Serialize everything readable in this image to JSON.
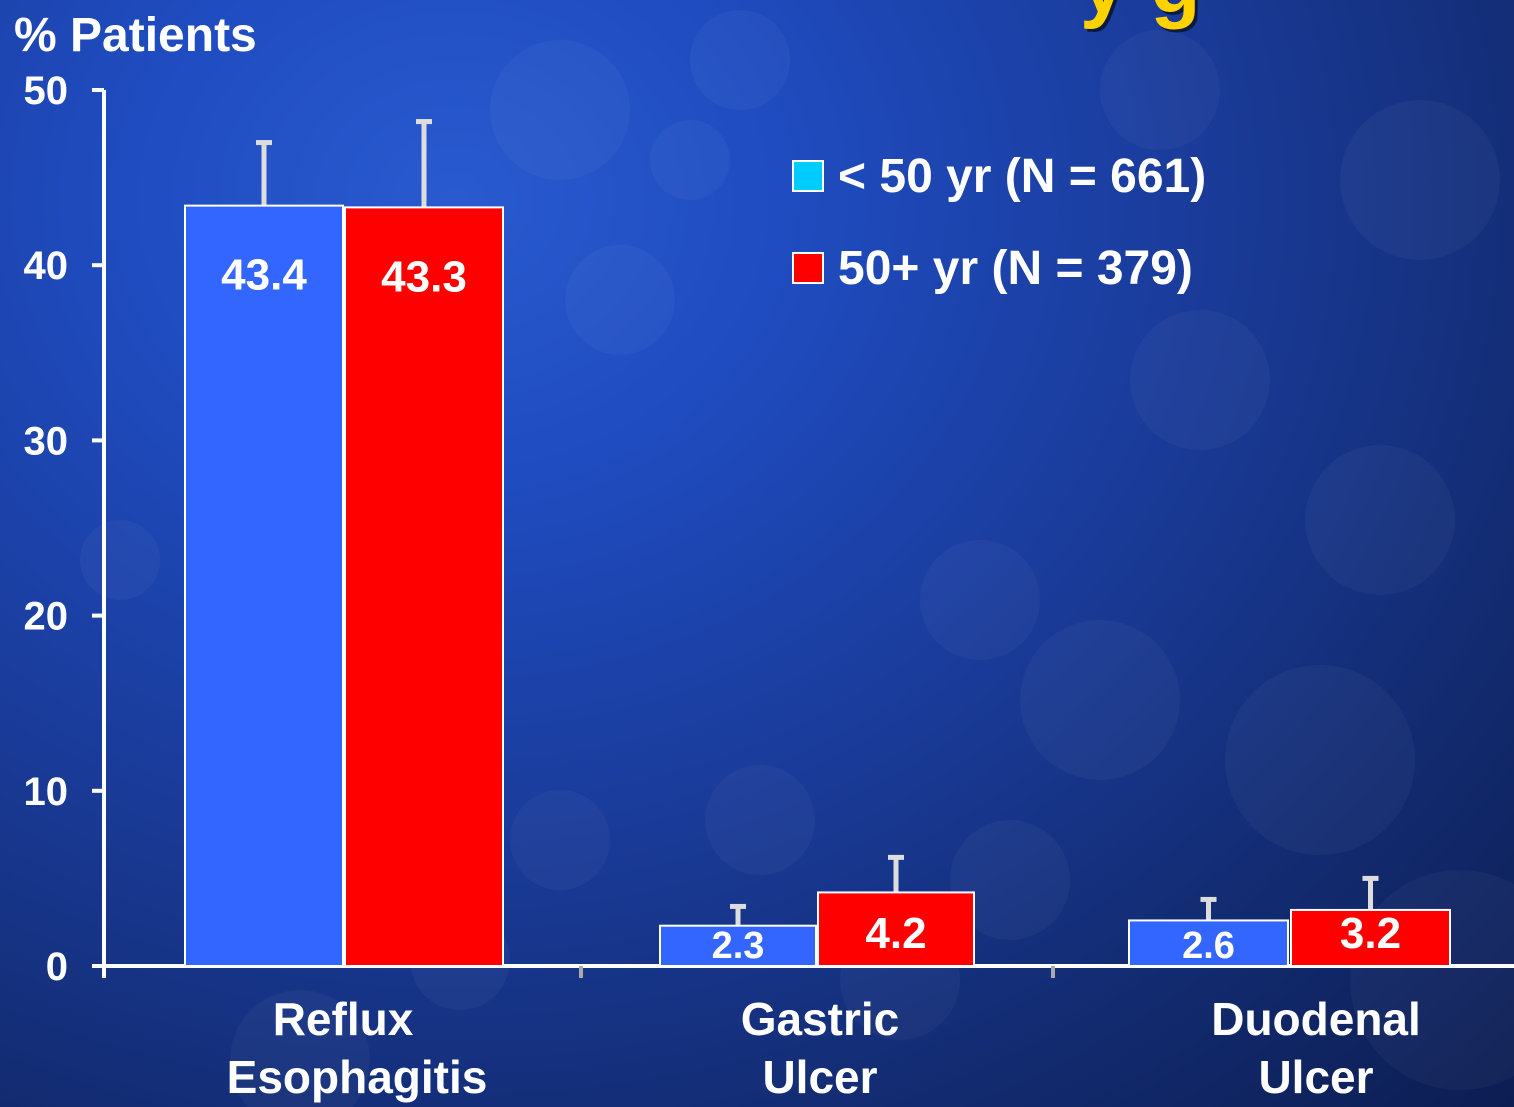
{
  "title_fragment": "y g",
  "chart_data": {
    "type": "bar",
    "title": "",
    "ylabel": "% Patients",
    "xlabel": "",
    "ylim": [
      0,
      50
    ],
    "yticks": [
      0,
      10,
      20,
      30,
      40,
      50
    ],
    "grid": false,
    "legend_position": "top-right",
    "categories": [
      "Reflux Esophagitis",
      "Gastric Ulcer",
      "Duodenal Ulcer"
    ],
    "category_lines": [
      [
        "Reflux",
        "Esophagitis"
      ],
      [
        "Gastric",
        "Ulcer"
      ],
      [
        "Duodenal",
        "Ulcer"
      ]
    ],
    "series": [
      {
        "name": "< 50 yr (N = 661)",
        "color": "#3366ff",
        "swatch_color": "#00ccff",
        "values": [
          43.4,
          2.3,
          2.6
        ],
        "labels": [
          "43.4",
          "2.3",
          "2.6"
        ],
        "error_upper": [
          47.0,
          3.4,
          3.8
        ]
      },
      {
        "name": "50+ yr (N = 379)",
        "color": "#ff0000",
        "swatch_color": "#ff0000",
        "values": [
          43.3,
          4.2,
          3.2
        ],
        "labels": [
          "43.3",
          "4.2",
          "3.2"
        ],
        "error_upper": [
          48.2,
          6.2,
          5.0
        ]
      }
    ]
  }
}
